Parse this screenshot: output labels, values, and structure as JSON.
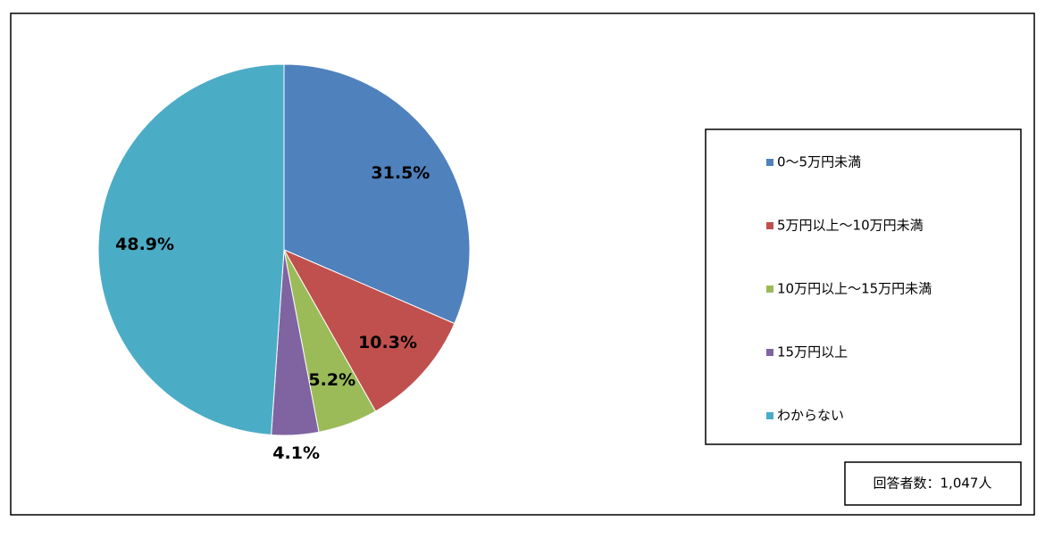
{
  "chart_data": {
    "type": "pie",
    "categories": [
      "0～5万円未満",
      "5万円以上～10万円未満",
      "10万円以上～15万円未満",
      "15万円以上",
      "わからない"
    ],
    "values": [
      31.5,
      10.3,
      5.2,
      4.1,
      48.9
    ],
    "value_labels": [
      "31.5%",
      "10.3%",
      "5.2%",
      "4.1%",
      "48.9%"
    ],
    "colors": [
      "#4f81bd",
      "#c0504d",
      "#9bbb59",
      "#8064a2",
      "#4bacc6"
    ],
    "annotation": "回答者数：1,047人"
  }
}
